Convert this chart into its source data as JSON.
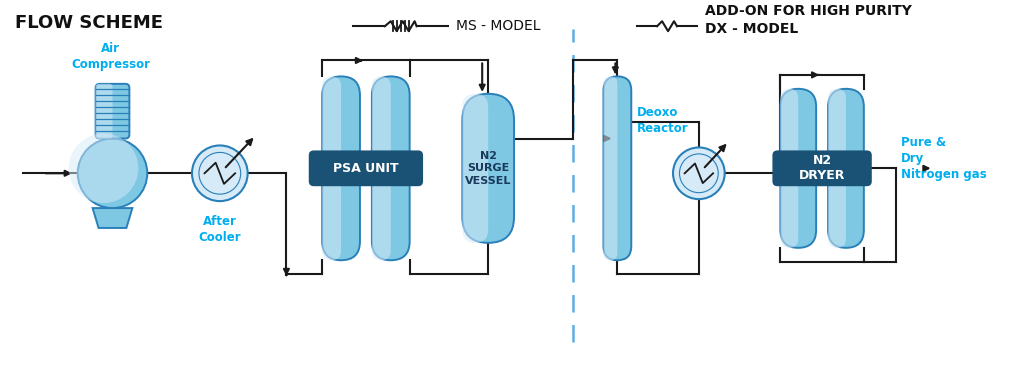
{
  "bg_color": "#ffffff",
  "title_flow": "FLOW SCHEME",
  "title_ms": "MS - MODEL",
  "title_addon": "ADD-ON FOR HIGH PURITY\nDX - MODEL",
  "label_air_compressor": "Air\nCompressor",
  "label_after_cooler": "After\nCooler",
  "label_psa": "PSA UNIT",
  "label_n2_surge": "N2\nSURGE\nVESSEL",
  "label_deoxo": "Deoxo\nReactor",
  "label_n2_dryer": "N2\nDRYER",
  "label_pure_n2": "Pure &\nDry\nNitrogen gas",
  "cyan": "#00AEEF",
  "vessel_mid": "#7EC8E3",
  "vessel_dark": "#2980B9",
  "vessel_light": "#D6EAF8",
  "line_color": "#1a1a1a",
  "dashed_color": "#5DADE2",
  "label_box": "#1A5276"
}
